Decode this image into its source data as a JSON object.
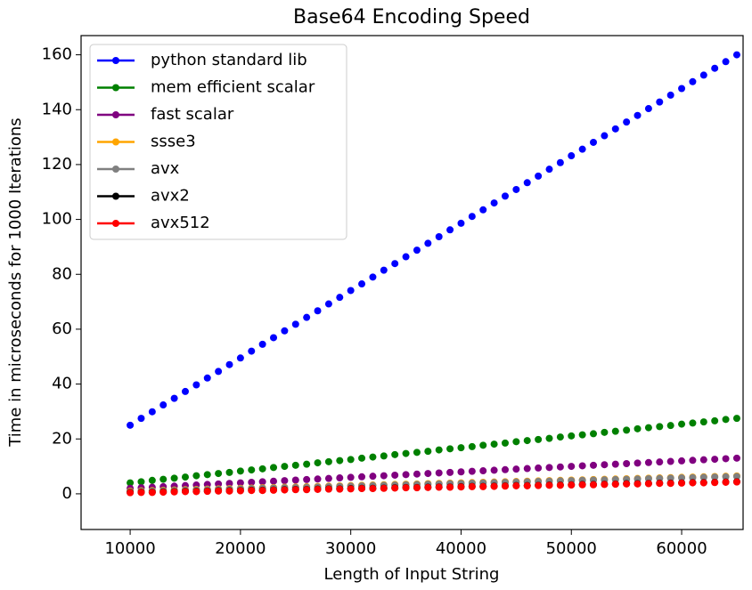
{
  "chart_data": {
    "type": "scatter",
    "title": "Base64 Encoding Speed",
    "x_label": "Length of Input String",
    "y_label": "Time in microseconds for 1000 Iterations",
    "x": [
      10000,
      11000,
      12000,
      13000,
      14000,
      15000,
      16000,
      17000,
      18000,
      19000,
      20000,
      21000,
      22000,
      23000,
      24000,
      25000,
      26000,
      27000,
      28000,
      29000,
      30000,
      31000,
      32000,
      33000,
      34000,
      35000,
      36000,
      37000,
      38000,
      39000,
      40000,
      41000,
      42000,
      43000,
      44000,
      45000,
      46000,
      47000,
      48000,
      49000,
      50000,
      51000,
      52000,
      53000,
      54000,
      55000,
      56000,
      57000,
      58000,
      59000,
      60000,
      61000,
      62000,
      63000,
      64000,
      65000
    ],
    "series": [
      {
        "name": "python standard lib",
        "color": "#0000ff",
        "values": [
          25.0,
          27.5,
          29.9,
          32.4,
          34.8,
          37.3,
          39.7,
          42.2,
          44.6,
          47.1,
          49.5,
          52.0,
          54.5,
          56.9,
          59.4,
          61.8,
          64.3,
          66.7,
          69.2,
          71.6,
          74.1,
          76.5,
          79.0,
          81.5,
          83.9,
          86.4,
          88.8,
          91.3,
          93.7,
          96.2,
          98.6,
          101.1,
          103.5,
          106.0,
          108.5,
          110.9,
          113.4,
          115.8,
          118.3,
          120.7,
          123.2,
          125.6,
          128.1,
          130.5,
          133.0,
          135.5,
          137.9,
          140.4,
          142.8,
          145.3,
          147.7,
          150.2,
          152.6,
          155.1,
          157.5,
          160.0
        ]
      },
      {
        "name": "mem efficient scalar",
        "color": "#008000",
        "values": [
          4.0,
          4.4,
          4.9,
          5.3,
          5.7,
          6.1,
          6.6,
          7.0,
          7.4,
          7.8,
          8.3,
          8.7,
          9.1,
          9.6,
          10.0,
          10.4,
          10.8,
          11.3,
          11.7,
          12.1,
          12.5,
          13.0,
          13.4,
          13.8,
          14.3,
          14.7,
          15.1,
          15.5,
          16.0,
          16.4,
          16.8,
          17.2,
          17.7,
          18.1,
          18.5,
          19.0,
          19.4,
          19.8,
          20.2,
          20.7,
          21.1,
          21.5,
          21.9,
          22.4,
          22.8,
          23.2,
          23.7,
          24.1,
          24.5,
          24.9,
          25.4,
          25.8,
          26.2,
          26.6,
          27.1,
          27.5
        ]
      },
      {
        "name": "fast scalar",
        "color": "#800080",
        "values": [
          2.0,
          2.2,
          2.4,
          2.6,
          2.8,
          3.0,
          3.2,
          3.4,
          3.6,
          3.8,
          4.0,
          4.2,
          4.4,
          4.6,
          4.8,
          5.0,
          5.2,
          5.4,
          5.6,
          5.8,
          6.0,
          6.2,
          6.4,
          6.6,
          6.8,
          7.0,
          7.2,
          7.4,
          7.6,
          7.8,
          8.0,
          8.2,
          8.4,
          8.6,
          8.8,
          9.0,
          9.2,
          9.4,
          9.6,
          9.8,
          10.0,
          10.2,
          10.4,
          10.6,
          10.8,
          11.0,
          11.2,
          11.4,
          11.6,
          11.8,
          12.0,
          12.2,
          12.4,
          12.6,
          12.8,
          13.0
        ]
      },
      {
        "name": "ssse3",
        "color": "#ffa500",
        "values": [
          1.0,
          1.1,
          1.2,
          1.3,
          1.4,
          1.5,
          1.6,
          1.7,
          1.8,
          1.9,
          2.0,
          2.1,
          2.2,
          2.3,
          2.4,
          2.5,
          2.6,
          2.7,
          2.8,
          2.9,
          3.0,
          3.1,
          3.2,
          3.3,
          3.4,
          3.5,
          3.6,
          3.7,
          3.8,
          3.9,
          4.0,
          4.1,
          4.2,
          4.3,
          4.4,
          4.5,
          4.6,
          4.7,
          4.8,
          4.9,
          5.0,
          5.1,
          5.2,
          5.3,
          5.4,
          5.5,
          5.6,
          5.7,
          5.8,
          5.9,
          6.0,
          6.1,
          6.2,
          6.3,
          6.4,
          6.5
        ]
      },
      {
        "name": "avx",
        "color": "#808080",
        "values": [
          0.8,
          0.9,
          1.0,
          1.1,
          1.2,
          1.3,
          1.4,
          1.5,
          1.6,
          1.7,
          1.8,
          1.9,
          2.0,
          2.1,
          2.2,
          2.3,
          2.4,
          2.5,
          2.6,
          2.7,
          2.8,
          2.9,
          3.0,
          3.1,
          3.2,
          3.3,
          3.4,
          3.5,
          3.6,
          3.7,
          3.8,
          3.9,
          4.0,
          4.1,
          4.2,
          4.3,
          4.4,
          4.5,
          4.6,
          4.7,
          4.8,
          4.9,
          5.0,
          5.1,
          5.2,
          5.3,
          5.4,
          5.5,
          5.6,
          5.7,
          5.8,
          5.9,
          6.0,
          6.1,
          6.2,
          6.3
        ]
      },
      {
        "name": "avx2",
        "color": "#000000",
        "values": [
          0.5,
          0.6,
          0.6,
          0.7,
          0.8,
          0.9,
          0.9,
          1.0,
          1.1,
          1.1,
          1.2,
          1.3,
          1.3,
          1.4,
          1.5,
          1.6,
          1.6,
          1.7,
          1.8,
          1.8,
          1.9,
          2.0,
          2.0,
          2.1,
          2.2,
          2.3,
          2.3,
          2.4,
          2.5,
          2.5,
          2.6,
          2.7,
          2.7,
          2.8,
          2.9,
          3.0,
          3.0,
          3.1,
          3.2,
          3.2,
          3.3,
          3.4,
          3.4,
          3.5,
          3.6,
          3.7,
          3.7,
          3.8,
          3.9,
          3.9,
          4.0,
          4.1,
          4.1,
          4.2,
          4.3,
          4.4
        ]
      },
      {
        "name": "avx512",
        "color": "#ff0000",
        "values": [
          0.4,
          0.5,
          0.5,
          0.6,
          0.7,
          0.8,
          0.8,
          0.9,
          1.0,
          1.0,
          1.1,
          1.2,
          1.2,
          1.3,
          1.4,
          1.5,
          1.5,
          1.6,
          1.7,
          1.7,
          1.8,
          1.9,
          1.9,
          2.0,
          2.1,
          2.2,
          2.2,
          2.3,
          2.4,
          2.4,
          2.5,
          2.6,
          2.6,
          2.7,
          2.8,
          2.9,
          2.9,
          3.0,
          3.1,
          3.1,
          3.2,
          3.3,
          3.3,
          3.4,
          3.5,
          3.6,
          3.6,
          3.7,
          3.8,
          3.8,
          3.9,
          4.0,
          4.0,
          4.1,
          4.2,
          4.3
        ]
      }
    ],
    "xlim": [
      5550,
      65570
    ],
    "ylim": [
      -13,
      167
    ],
    "xticks": [
      10000,
      20000,
      30000,
      40000,
      50000,
      60000
    ],
    "yticks": [
      0,
      20,
      40,
      60,
      80,
      100,
      120,
      140,
      160
    ],
    "legend": "upper left",
    "grid": false
  }
}
